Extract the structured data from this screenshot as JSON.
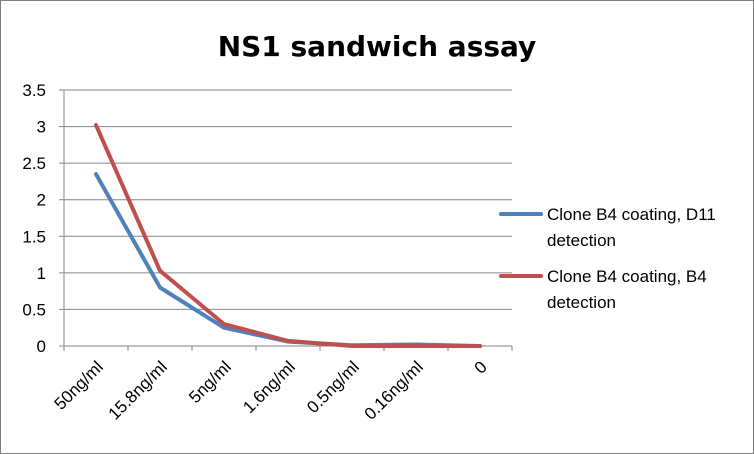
{
  "chart_data": {
    "type": "line",
    "title": "NS1 sandwich assay",
    "xlabel": "",
    "ylabel": "",
    "categories": [
      "50ng/ml",
      "15.8ng/ml",
      "5ng/ml",
      "1.6ng/ml",
      "0.5ng/ml",
      "0.16ng/ml",
      "0"
    ],
    "ylim": [
      0,
      3.5
    ],
    "yticks": [
      "0",
      "0.5",
      "1",
      "1.5",
      "2",
      "2.5",
      "3",
      "3.5"
    ],
    "grid": true,
    "legend_position": "right",
    "series": [
      {
        "name": "Clone B4 coating, D11 detection",
        "name_lines": [
          "Clone B4 coating, D11",
          "detection"
        ],
        "color": "#4f81bd",
        "values": [
          2.35,
          0.8,
          0.25,
          0.06,
          0.01,
          0.02,
          0.0
        ]
      },
      {
        "name": "Clone B4 coating, B4 detection",
        "name_lines": [
          "Clone B4 coating, B4",
          "detection"
        ],
        "color": "#c0504d",
        "values": [
          3.02,
          1.03,
          0.3,
          0.07,
          0.0,
          0.0,
          0.0
        ]
      }
    ]
  }
}
